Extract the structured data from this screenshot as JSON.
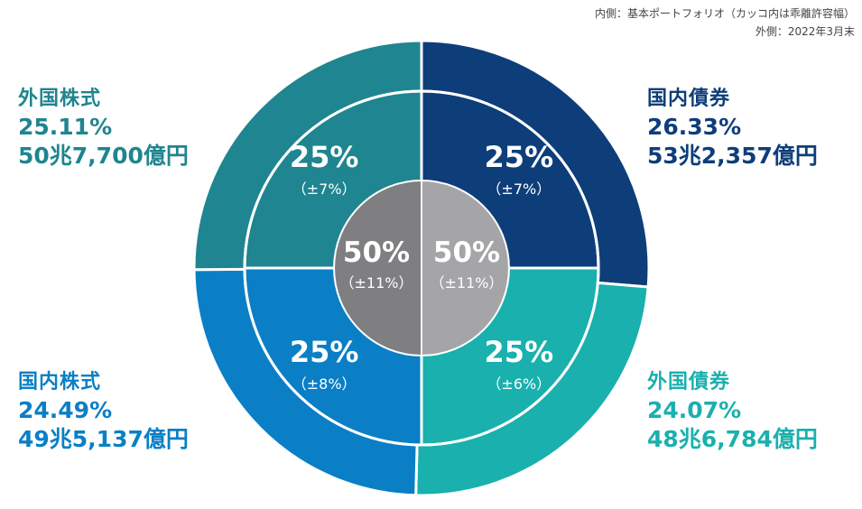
{
  "notes": {
    "inner": "内側：基本ポートフォリオ（カッコ内は乖離許容幅）",
    "outer": "外側：2022年3月末"
  },
  "colors": {
    "domestic_bonds": "#0e3e7a",
    "foreign_bonds": "#19b0ae",
    "domestic_equity": "#0a7fc6",
    "foreign_equity": "#1f8590",
    "center_left": "#7f7f82",
    "center_right": "#a5a5a8"
  },
  "chart_data": {
    "type": "pie",
    "outer_ring": [
      {
        "name": "国内債券",
        "percent": 26.33,
        "pct_label": "26.33%",
        "amount": "53兆2,357億円"
      },
      {
        "name": "外国債券",
        "percent": 24.07,
        "pct_label": "24.07%",
        "amount": "48兆6,784億円"
      },
      {
        "name": "国内株式",
        "percent": 24.49,
        "pct_label": "24.49%",
        "amount": "49兆5,137億円"
      },
      {
        "name": "外国株式",
        "percent": 25.11,
        "pct_label": "25.11%",
        "amount": "50兆7,700億円"
      }
    ],
    "inner_ring": [
      {
        "percent": 25,
        "label": "25%",
        "range": "（±7%）"
      },
      {
        "percent": 25,
        "label": "25%",
        "range": "（±6%）"
      },
      {
        "percent": 25,
        "label": "25%",
        "range": "（±8%）"
      },
      {
        "percent": 25,
        "label": "25%",
        "range": "（±7%）"
      }
    ],
    "center": [
      {
        "percent": 50,
        "label": "50%",
        "range": "（±11%）"
      },
      {
        "percent": 50,
        "label": "50%",
        "range": "（±11%）"
      }
    ]
  }
}
